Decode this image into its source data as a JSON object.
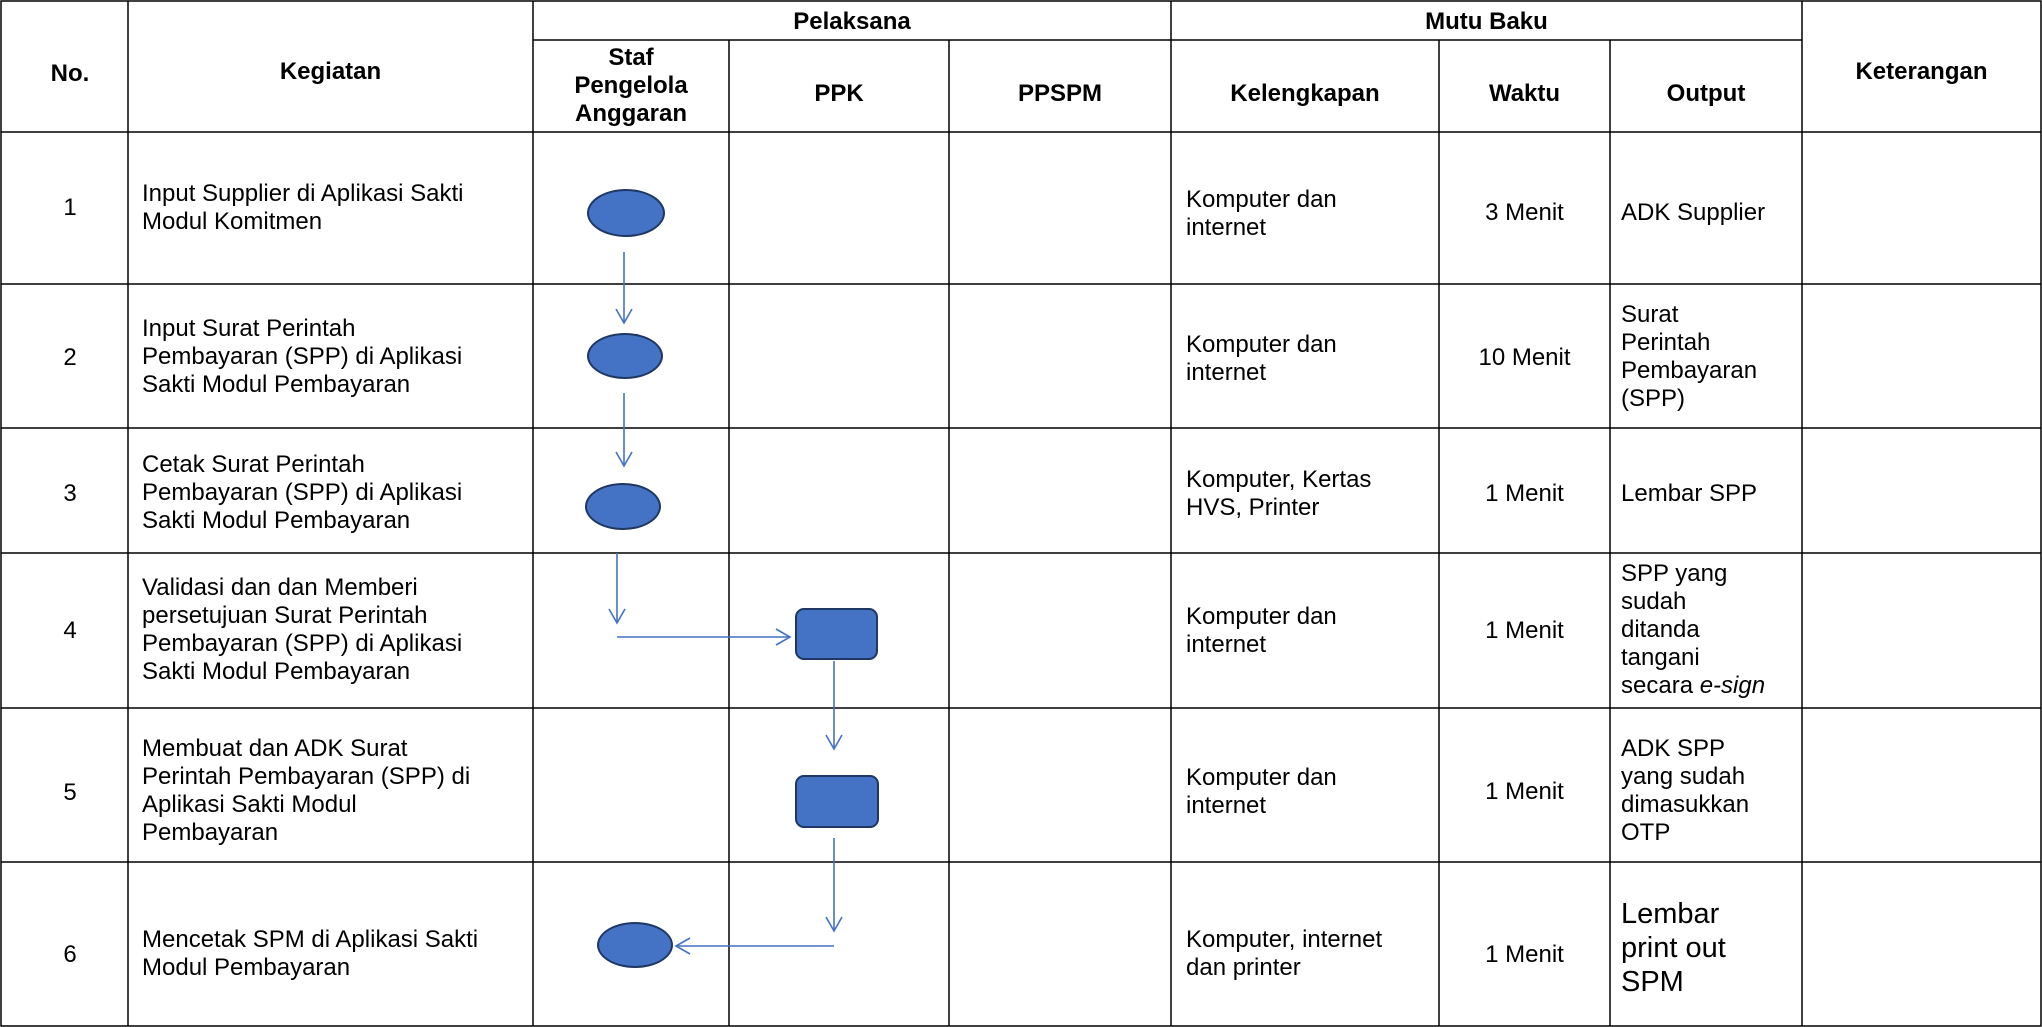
{
  "headers": {
    "no": "No.",
    "kegiatan": "Kegiatan",
    "pelaksana": "Pelaksana",
    "mutu_baku": "Mutu Baku",
    "staf": "Staf\nPengelola\nAnggaran",
    "ppk": "PPK",
    "ppspm": "PPSPM",
    "kelengkapan": "Kelengkapan",
    "waktu": "Waktu",
    "output": "Output",
    "keterangan": "Keterangan"
  },
  "rows": [
    {
      "no": "1",
      "kegiatan": "Input Supplier di Aplikasi Sakti\nModul Komitmen",
      "kelengkapan": "Komputer dan\ninternet",
      "waktu": "3 Menit",
      "output": "ADK Supplier",
      "keterangan": ""
    },
    {
      "no": "2",
      "kegiatan": "Input Surat Perintah\nPembayaran (SPP) di Aplikasi\nSakti Modul Pembayaran",
      "kelengkapan": "Komputer dan\ninternet",
      "waktu": "10 Menit",
      "output": "Surat\nPerintah\nPembayaran\n(SPP)",
      "keterangan": ""
    },
    {
      "no": "3",
      "kegiatan": "Cetak Surat Perintah\nPembayaran (SPP) di Aplikasi\nSakti Modul Pembayaran",
      "kelengkapan": "Komputer, Kertas\nHVS, Printer",
      "waktu": "1 Menit",
      "output": "Lembar SPP",
      "keterangan": ""
    },
    {
      "no": "4",
      "kegiatan": "Validasi dan dan Memberi\npersetujuan Surat Perintah\nPembayaran (SPP) di Aplikasi\nSakti Modul Pembayaran",
      "kelengkapan": "Komputer dan\ninternet",
      "waktu": "1 Menit",
      "output": "SPP yang\nsudah\nditanda\ntangani",
      "output_tail_prefix": "secara ",
      "output_tail_italic": "e-sign",
      "keterangan": ""
    },
    {
      "no": "5",
      "kegiatan": "Membuat dan ADK Surat\nPerintah Pembayaran (SPP) di\nAplikasi Sakti Modul\nPembayaran",
      "kelengkapan": "Komputer dan\ninternet",
      "waktu": "1 Menit",
      "output": "ADK SPP\nyang sudah\ndimasukkan\nOTP",
      "keterangan": ""
    },
    {
      "no": "6",
      "kegiatan": "Mencetak SPM di Aplikasi Sakti\nModul Pembayaran",
      "kelengkapan": "Komputer, internet\ndan printer",
      "waktu": "1 Menit",
      "output": "Lembar\nprint out\nSPM",
      "keterangan": ""
    }
  ],
  "flow": {
    "shape_fill": "#4472c4",
    "shape_border": "#1f3763",
    "connector_color": "#4472c4",
    "steps": [
      {
        "row": 1,
        "actor": "Staf Pengelola Anggaran",
        "shape": "oval"
      },
      {
        "row": 2,
        "actor": "Staf Pengelola Anggaran",
        "shape": "oval"
      },
      {
        "row": 3,
        "actor": "Staf Pengelola Anggaran",
        "shape": "oval"
      },
      {
        "row": 4,
        "actor": "PPK",
        "shape": "rounded-rectangle"
      },
      {
        "row": 5,
        "actor": "PPK",
        "shape": "rounded-rectangle"
      },
      {
        "row": 6,
        "actor": "Staf Pengelola Anggaran",
        "shape": "oval"
      }
    ]
  }
}
